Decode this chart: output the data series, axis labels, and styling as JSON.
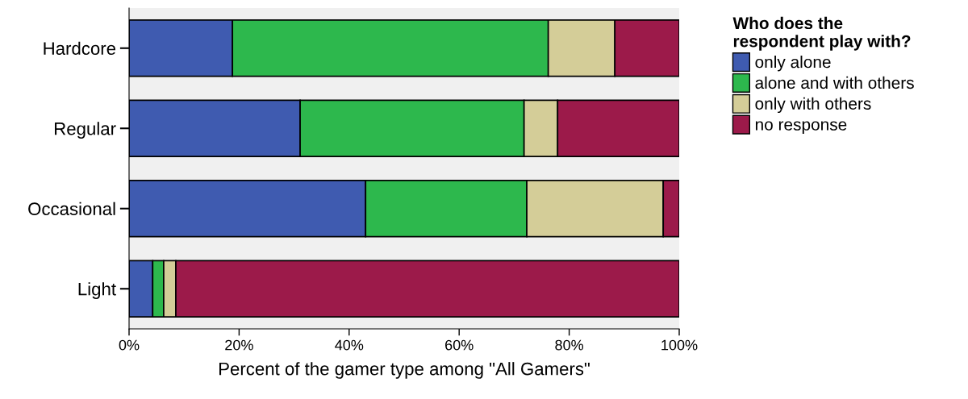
{
  "chart_data": {
    "type": "bar",
    "orientation": "horizontal",
    "stacked": true,
    "xlabel": "Percent of the gamer type among \"All Gamers\"",
    "legend_title": "Who does the\nrespondent play with?",
    "categories": [
      "Hardcore",
      "Regular",
      "Occasional",
      "Light"
    ],
    "series": [
      {
        "name": "only alone",
        "color": "#3f5bb0",
        "values": [
          18.8,
          31.1,
          43.0,
          4.3
        ]
      },
      {
        "name": "alone and with others",
        "color": "#2db84d",
        "values": [
          57.4,
          40.7,
          29.3,
          2.0
        ]
      },
      {
        "name": "only with others",
        "color": "#d4cd98",
        "values": [
          12.1,
          6.1,
          24.8,
          2.2
        ]
      },
      {
        "name": "no response",
        "color": "#9c1a4a",
        "values": [
          11.7,
          22.1,
          2.9,
          91.5
        ]
      }
    ],
    "xlim": [
      0,
      100
    ],
    "xticks": [
      {
        "value": 0,
        "label": "0%"
      },
      {
        "value": 20,
        "label": "20%"
      },
      {
        "value": 40,
        "label": "40%"
      },
      {
        "value": 60,
        "label": "60%"
      },
      {
        "value": 80,
        "label": "80%"
      },
      {
        "value": 100,
        "label": "100%"
      }
    ],
    "grid": false,
    "legend": "right"
  }
}
